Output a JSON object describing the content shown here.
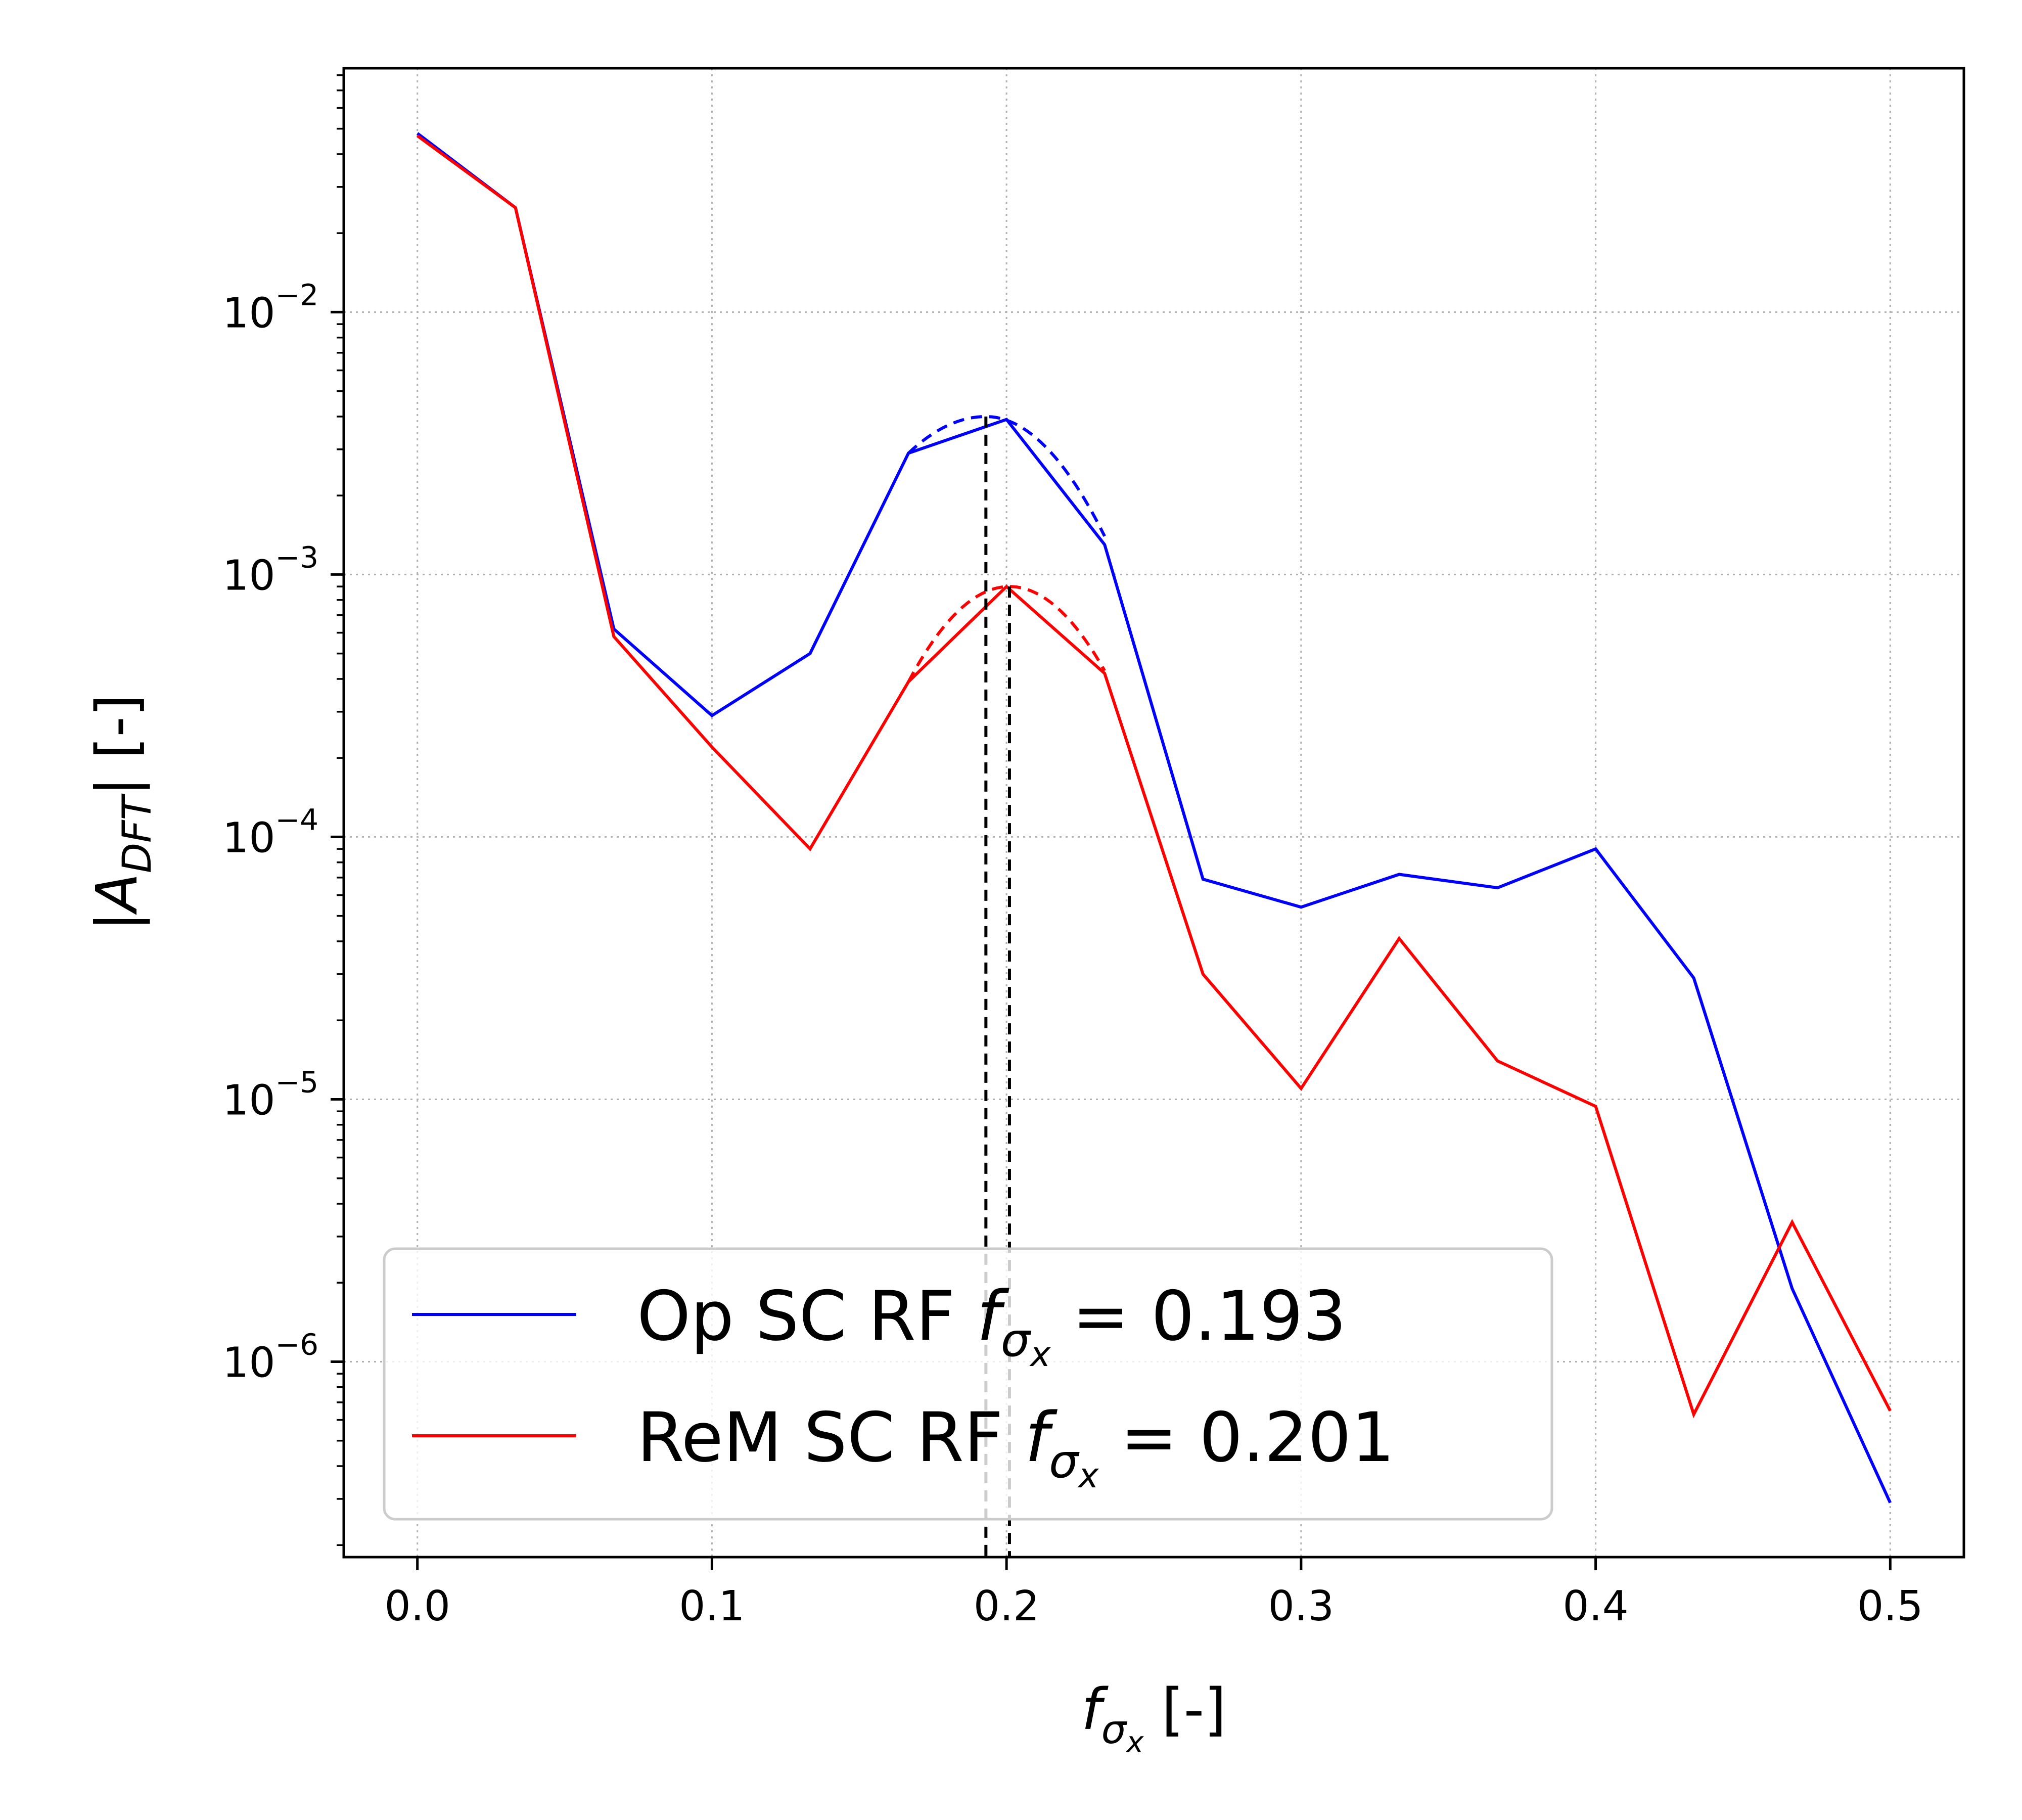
{
  "chart_data": {
    "type": "line",
    "xlabel": "f_σx [-]",
    "xlabel_main": "f",
    "xlabel_sub": "σ",
    "xlabel_subsub": "x",
    "xlabel_unit": " [-]",
    "ylabel": "|A_DFT| [-]",
    "ylabel_pre": "|A",
    "ylabel_sub": "DFT",
    "ylabel_post": "| [-]",
    "xlim": [
      -0.025,
      0.525
    ],
    "ylim": [
      1.8e-07,
      0.085
    ],
    "yscale": "log",
    "grid": true,
    "legend_position": "lower-left",
    "x_ticks": [
      {
        "value": 0.0,
        "label": "0.0"
      },
      {
        "value": 0.1,
        "label": "0.1"
      },
      {
        "value": 0.2,
        "label": "0.2"
      },
      {
        "value": 0.3,
        "label": "0.3"
      },
      {
        "value": 0.4,
        "label": "0.4"
      },
      {
        "value": 0.5,
        "label": "0.5"
      }
    ],
    "y_ticks": [
      {
        "value": 1e-06,
        "base": "10",
        "exp": "−6"
      },
      {
        "value": 1e-05,
        "base": "10",
        "exp": "−5"
      },
      {
        "value": 0.0001,
        "base": "10",
        "exp": "−4"
      },
      {
        "value": 0.001,
        "base": "10",
        "exp": "−3"
      },
      {
        "value": 0.01,
        "base": "10",
        "exp": "−2"
      }
    ],
    "series": [
      {
        "name": "Op SC RF",
        "legend_main": "Op SC RF ",
        "legend_f": "f",
        "legend_sub": "σ",
        "legend_subsub": "x",
        "legend_value": " = 0.193",
        "color": "#0000ff",
        "x": [
          0.0,
          0.0333,
          0.0667,
          0.1,
          0.1333,
          0.1667,
          0.2,
          0.2333,
          0.2667,
          0.3,
          0.3333,
          0.3667,
          0.4,
          0.4333,
          0.4667,
          0.5
        ],
        "values": [
          0.048,
          0.025,
          0.00062,
          0.00029,
          0.0005,
          0.0029,
          0.0039,
          0.0013,
          6.9e-05,
          5.4e-05,
          7.2e-05,
          6.4e-05,
          9e-05,
          2.9e-05,
          1.9e-06,
          2.9e-07
        ],
        "peak_freq": 0.193,
        "fit_curve": {
          "x_start": 0.1667,
          "x_end": 0.2333,
          "peak_x": 0.193,
          "peak_y": 0.004,
          "end_y": 0.0014
        }
      },
      {
        "name": "ReM SC RF",
        "legend_main": "ReM SC RF ",
        "legend_f": "f",
        "legend_sub": "σ",
        "legend_subsub": "x",
        "legend_value": " = 0.201",
        "color": "#ff0000",
        "x": [
          0.0,
          0.0333,
          0.0667,
          0.1,
          0.1333,
          0.1667,
          0.2,
          0.2333,
          0.2667,
          0.3,
          0.3333,
          0.3667,
          0.4,
          0.4333,
          0.4667,
          0.5
        ],
        "values": [
          0.047,
          0.025,
          0.00058,
          0.00022,
          9e-05,
          0.00039,
          0.0009,
          0.00042,
          3e-05,
          1.1e-05,
          4.1e-05,
          1.4e-05,
          9.4e-06,
          6.3e-07,
          3.4e-06,
          6.5e-07
        ],
        "peak_freq": 0.201,
        "fit_curve": {
          "x_start": 0.1667,
          "x_end": 0.2333,
          "peak_x": 0.201,
          "peak_y": 0.0009,
          "end_y": 0.00043
        }
      }
    ]
  }
}
